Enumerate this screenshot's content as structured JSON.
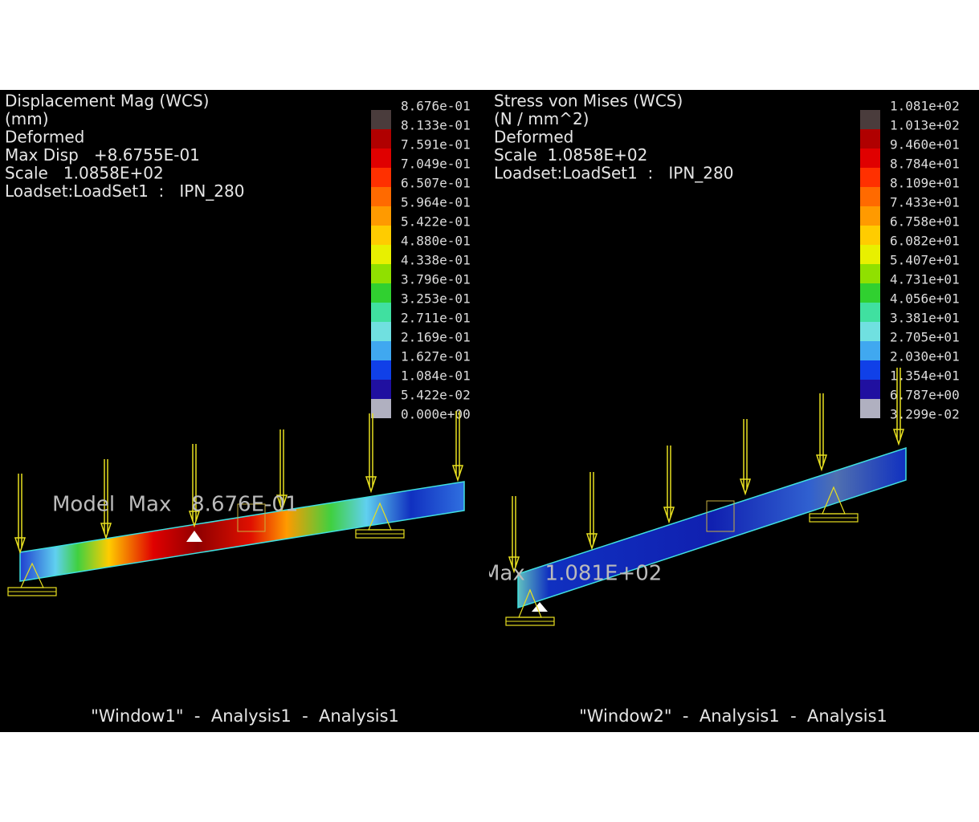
{
  "panels": [
    {
      "header": [
        "Displacement Mag (WCS)",
        "(mm)",
        "Deformed",
        "Max Disp   +8.6755E-01",
        "Scale   1.0858E+02",
        "Loadset:LoadSet1  :   IPN_280"
      ],
      "legend": [
        "8.676e-01",
        "8.133e-01",
        "7.591e-01",
        "7.049e-01",
        "6.507e-01",
        "5.964e-01",
        "5.422e-01",
        "4.880e-01",
        "4.338e-01",
        "3.796e-01",
        "3.253e-01",
        "2.711e-01",
        "2.169e-01",
        "1.627e-01",
        "1.084e-01",
        "5.422e-02",
        "0.000e+00"
      ],
      "annotation": "Model  Max   8.676E-01",
      "caption": "\"Window1\"  -  Analysis1  -  Analysis1"
    },
    {
      "header": [
        "Stress von Mises (WCS)",
        "(N / mm^2)",
        "Deformed",
        "Scale  1.0858E+02",
        "Loadset:LoadSet1  :   IPN_280"
      ],
      "legend": [
        "1.081e+02",
        "1.013e+02",
        "9.460e+01",
        "8.784e+01",
        "8.109e+01",
        "7.433e+01",
        "6.758e+01",
        "6.082e+01",
        "5.407e+01",
        "4.731e+01",
        "4.056e+01",
        "3.381e+01",
        "2.705e+01",
        "2.030e+01",
        "1.354e+01",
        "6.787e+00",
        "3.299e-02"
      ],
      "annotation": "Max   1.081E+02",
      "caption": "\"Window2\"  -  Analysis1  -  Analysis1"
    }
  ]
}
